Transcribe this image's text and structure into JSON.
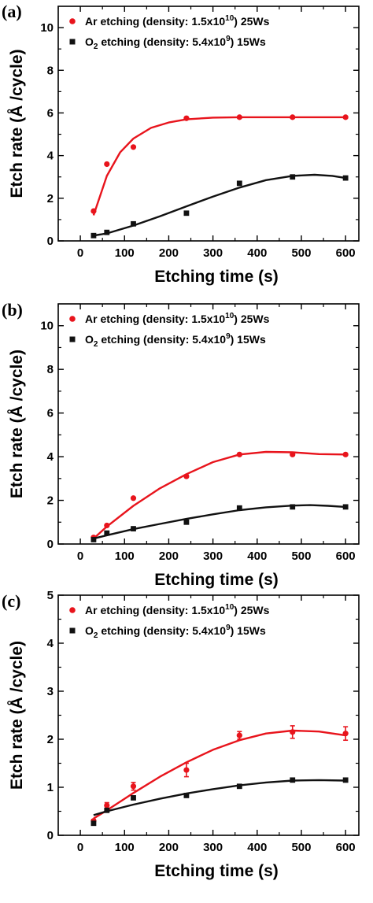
{
  "chart_data": [
    {
      "type": "scatter",
      "panel_label": "(a)",
      "xlabel": "Etching time (s)",
      "ylabel": "Etch rate (Å /cycle)",
      "xlim": [
        -50,
        630
      ],
      "ylim": [
        0,
        11
      ],
      "xticks": [
        0,
        100,
        200,
        300,
        400,
        500,
        600
      ],
      "yticks": [
        0,
        2,
        4,
        6,
        8,
        10
      ],
      "legend_position": "top-left",
      "series": [
        {
          "name": "Ar etching (density: 1.5x10^10) 25Ws",
          "color": "#e8141c",
          "marker": "circle",
          "x": [
            30,
            60,
            120,
            240,
            360,
            480,
            600
          ],
          "y": [
            1.4,
            3.6,
            4.4,
            5.75,
            5.8,
            5.8,
            5.8
          ],
          "fit": [
            [
              30,
              1.2
            ],
            [
              60,
              3.05
            ],
            [
              90,
              4.15
            ],
            [
              120,
              4.8
            ],
            [
              160,
              5.3
            ],
            [
              200,
              5.55
            ],
            [
              240,
              5.7
            ],
            [
              300,
              5.78
            ],
            [
              360,
              5.8
            ],
            [
              480,
              5.8
            ],
            [
              600,
              5.8
            ]
          ]
        },
        {
          "name": "O2 etching (density: 5.4x10^9) 15Ws",
          "color": "#111111",
          "marker": "square",
          "x": [
            30,
            60,
            120,
            240,
            360,
            480,
            600
          ],
          "y": [
            0.25,
            0.4,
            0.8,
            1.3,
            2.7,
            3.0,
            2.95
          ],
          "fit": [
            [
              30,
              0.25
            ],
            [
              60,
              0.35
            ],
            [
              120,
              0.72
            ],
            [
              180,
              1.15
            ],
            [
              240,
              1.62
            ],
            [
              300,
              2.08
            ],
            [
              360,
              2.5
            ],
            [
              420,
              2.85
            ],
            [
              480,
              3.05
            ],
            [
              530,
              3.1
            ],
            [
              570,
              3.05
            ],
            [
              600,
              2.95
            ]
          ]
        }
      ],
      "legend_entries": [
        {
          "pre": "Ar etching (density: 1.5x10",
          "sup": "10",
          "post": ") 25Ws"
        },
        {
          "pre": "O",
          "sub": "2",
          "mid": " etching (density: 5.4x10",
          "sup": "9",
          "post": ") 15Ws"
        }
      ]
    },
    {
      "type": "scatter",
      "panel_label": "(b)",
      "xlabel": "Etching time (s)",
      "ylabel": "Etch rate (Å /cycle)",
      "xlim": [
        -50,
        630
      ],
      "ylim": [
        0,
        11
      ],
      "xticks": [
        0,
        100,
        200,
        300,
        400,
        500,
        600
      ],
      "yticks": [
        0,
        2,
        4,
        6,
        8,
        10
      ],
      "legend_position": "top-left",
      "series": [
        {
          "name": "Ar etching (density: 1.5x10^10) 25Ws",
          "color": "#e8141c",
          "marker": "circle",
          "x": [
            30,
            60,
            120,
            240,
            360,
            480,
            600
          ],
          "y": [
            0.3,
            0.85,
            2.1,
            3.1,
            4.1,
            4.1,
            4.1
          ],
          "fit": [
            [
              30,
              0.25
            ],
            [
              60,
              0.8
            ],
            [
              120,
              1.75
            ],
            [
              180,
              2.55
            ],
            [
              240,
              3.2
            ],
            [
              300,
              3.75
            ],
            [
              360,
              4.1
            ],
            [
              420,
              4.22
            ],
            [
              480,
              4.2
            ],
            [
              540,
              4.12
            ],
            [
              600,
              4.1
            ]
          ]
        },
        {
          "name": "O2 etching (density: 5.4x10^9) 15Ws",
          "color": "#111111",
          "marker": "square",
          "x": [
            30,
            60,
            120,
            240,
            360,
            480,
            600
          ],
          "y": [
            0.2,
            0.5,
            0.7,
            1.0,
            1.65,
            1.7,
            1.7
          ],
          "fit": [
            [
              30,
              0.25
            ],
            [
              60,
              0.4
            ],
            [
              120,
              0.68
            ],
            [
              180,
              0.92
            ],
            [
              240,
              1.15
            ],
            [
              300,
              1.36
            ],
            [
              360,
              1.55
            ],
            [
              420,
              1.68
            ],
            [
              480,
              1.76
            ],
            [
              520,
              1.78
            ],
            [
              560,
              1.75
            ],
            [
              600,
              1.7
            ]
          ]
        }
      ],
      "legend_entries": [
        {
          "pre": "Ar etching (density: 1.5x10",
          "sup": "10",
          "post": ") 25Ws"
        },
        {
          "pre": "O",
          "sub": "2",
          "mid": " etching (density: 5.4x10",
          "sup": "9",
          "post": ") 15Ws"
        }
      ]
    },
    {
      "type": "scatter",
      "panel_label": "(c)",
      "xlabel": "Etching time (s)",
      "ylabel": "Etch rate (Å /cycle)",
      "xlim": [
        -50,
        630
      ],
      "ylim": [
        0,
        5
      ],
      "xticks": [
        0,
        100,
        200,
        300,
        400,
        500,
        600
      ],
      "yticks": [
        0,
        1,
        2,
        3,
        4,
        5
      ],
      "legend_position": "top-left",
      "series": [
        {
          "name": "Ar etching (density: 1.5x10^10) 25Ws",
          "color": "#e8141c",
          "marker": "circle",
          "x": [
            30,
            60,
            120,
            240,
            360,
            480,
            600
          ],
          "y": [
            0.3,
            0.62,
            1.02,
            1.36,
            2.08,
            2.15,
            2.12
          ],
          "err": [
            0.03,
            0.06,
            0.08,
            0.14,
            0.08,
            0.13,
            0.14
          ],
          "fit": [
            [
              30,
              0.35
            ],
            [
              60,
              0.52
            ],
            [
              120,
              0.88
            ],
            [
              180,
              1.22
            ],
            [
              240,
              1.52
            ],
            [
              300,
              1.78
            ],
            [
              360,
              1.98
            ],
            [
              420,
              2.12
            ],
            [
              480,
              2.18
            ],
            [
              540,
              2.16
            ],
            [
              600,
              2.08
            ]
          ]
        },
        {
          "name": "O2 etching (density: 5.4x10^9) 15Ws",
          "color": "#111111",
          "marker": "square",
          "x": [
            30,
            60,
            120,
            240,
            360,
            480,
            600
          ],
          "y": [
            0.25,
            0.52,
            0.78,
            0.83,
            1.02,
            1.15,
            1.15
          ],
          "err": [
            0.02,
            0.03,
            0.03,
            0.04,
            0.03,
            0.03,
            0.04
          ],
          "fit": [
            [
              30,
              0.42
            ],
            [
              60,
              0.5
            ],
            [
              120,
              0.64
            ],
            [
              180,
              0.76
            ],
            [
              240,
              0.87
            ],
            [
              300,
              0.96
            ],
            [
              360,
              1.04
            ],
            [
              420,
              1.1
            ],
            [
              480,
              1.14
            ],
            [
              540,
              1.15
            ],
            [
              600,
              1.14
            ]
          ]
        }
      ],
      "legend_entries": [
        {
          "pre": "Ar etching (density: 1.5x10",
          "sup": "10",
          "post": ") 25Ws"
        },
        {
          "pre": "O",
          "sub": "2",
          "mid": " etching (density: 5.4x10",
          "sup": "9",
          "post": ") 15Ws"
        }
      ]
    }
  ]
}
